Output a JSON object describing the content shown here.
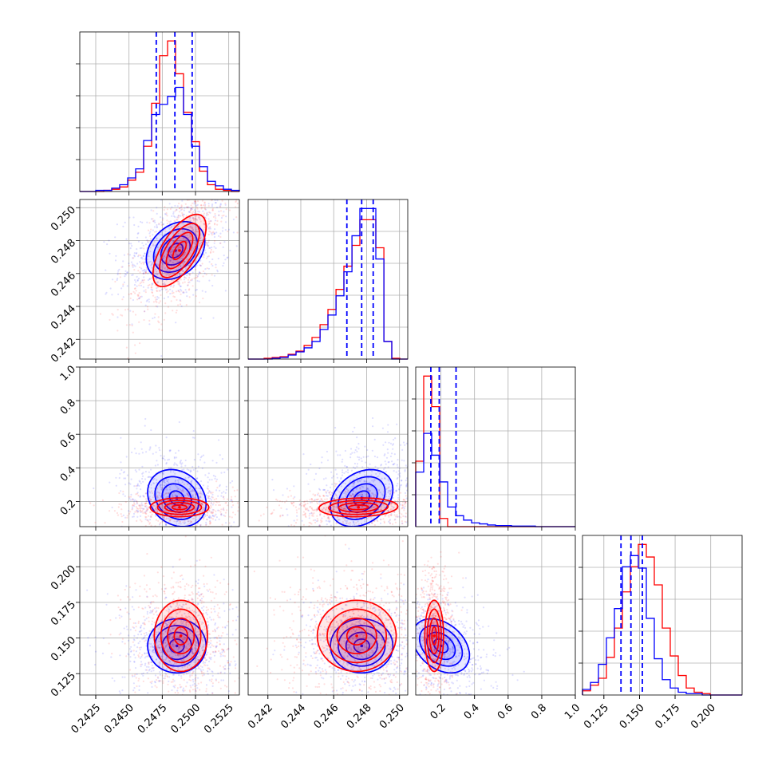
{
  "chart_data": {
    "type": "corner",
    "dimensions": [
      {
        "name": "",
        "range": [
          0.2413,
          0.2533
        ],
        "ticks": [
          "0.2425",
          "0.2450",
          "0.2475",
          "0.2500",
          "0.2525"
        ],
        "tick_values": [
          0.2425,
          0.245,
          0.2475,
          0.25,
          0.2525
        ]
      },
      {
        "name": "",
        "range": [
          0.2408,
          0.2505
        ],
        "ticks": [
          "0.242",
          "0.244",
          "0.246",
          "0.248",
          "0.250"
        ],
        "tick_values": [
          0.242,
          0.244,
          0.246,
          0.248,
          0.25
        ]
      },
      {
        "name": "",
        "range": [
          0.05,
          1.0
        ],
        "ticks": [
          "0.2",
          "0.4",
          "0.6",
          "0.8",
          "1.0"
        ],
        "tick_values": [
          0.2,
          0.4,
          0.6,
          0.8,
          1.0
        ]
      },
      {
        "name": "",
        "range": [
          0.11,
          0.222
        ],
        "ticks": [
          "0.125",
          "0.150",
          "0.175",
          "0.200"
        ],
        "tick_values": [
          0.125,
          0.15,
          0.175,
          0.2
        ]
      }
    ],
    "series": [
      {
        "name": "",
        "color": "#0000ff"
      },
      {
        "name": "",
        "color": "#ff0000"
      }
    ],
    "quantile_lines_color": "#0000ff",
    "quantiles": [
      [
        0.24705,
        0.24845,
        0.24975
      ],
      [
        0.2468,
        0.2477,
        0.2484
      ],
      [
        0.14,
        0.19,
        0.29
      ],
      [
        0.137,
        0.144,
        0.152
      ]
    ],
    "histograms": [
      {
        "bins": [
          0.2413,
          0.2419,
          0.2425,
          0.2431,
          0.2437,
          0.2443,
          0.2449,
          0.2455,
          0.2461,
          0.2467,
          0.2473,
          0.2479,
          0.2485,
          0.2491,
          0.2497,
          0.2503,
          0.2509,
          0.2515,
          0.2521,
          0.2527,
          0.2533
        ],
        "blue": [
          0,
          0,
          1,
          1,
          3,
          6,
          12,
          20,
          45,
          68,
          77,
          84,
          92,
          68,
          40,
          22,
          9,
          5,
          2,
          1
        ],
        "red": [
          0,
          0,
          0,
          1,
          2,
          4,
          10,
          17,
          40,
          78,
          120,
          133,
          104,
          70,
          44,
          18,
          6,
          2,
          1,
          0
        ]
      },
      {
        "bins": [
          0.2408,
          0.24129,
          0.24177,
          0.24226,
          0.24274,
          0.24323,
          0.24371,
          0.2442,
          0.24468,
          0.24517,
          0.24565,
          0.24614,
          0.24662,
          0.24711,
          0.24759,
          0.24808,
          0.24856,
          0.24905,
          0.24953,
          0.25002,
          0.2505
        ],
        "blue": [
          0,
          0,
          0,
          1,
          2,
          5,
          9,
          14,
          22,
          37,
          55,
          79,
          109,
          154,
          188,
          188,
          125,
          22,
          0,
          0
        ],
        "red": [
          0,
          0,
          1,
          2,
          3,
          6,
          10,
          17,
          27,
          43,
          62,
          87,
          116,
          142,
          174,
          174,
          139,
          22,
          1,
          0
        ]
      },
      {
        "bins": [
          0.05,
          0.0975,
          0.145,
          0.1925,
          0.24,
          0.2875,
          0.335,
          0.3825,
          0.43,
          0.4775,
          0.525,
          0.5725,
          0.62,
          0.6675,
          0.715,
          0.7625,
          0.81,
          0.8575,
          0.905,
          0.9525,
          1.0
        ],
        "blue": [
          100,
          171,
          131,
          82,
          36,
          20,
          12,
          7,
          5,
          3,
          2,
          2,
          1,
          1,
          1,
          0,
          0,
          0,
          0,
          0
        ],
        "red": [
          120,
          276,
          220,
          15,
          0,
          0,
          0,
          0,
          0,
          0,
          0,
          0,
          0,
          0,
          0,
          0,
          0,
          0,
          0,
          0
        ]
      },
      {
        "bins": [
          0.11,
          0.1156,
          0.1212,
          0.1268,
          0.1324,
          0.138,
          0.1436,
          0.1492,
          0.1548,
          0.1604,
          0.166,
          0.1716,
          0.1772,
          0.1828,
          0.1884,
          0.194,
          0.1996,
          0.2052,
          0.2108,
          0.2164,
          0.222
        ],
        "blue": [
          4,
          9,
          22,
          41,
          62,
          92,
          100,
          91,
          55,
          26,
          11,
          5,
          2,
          1,
          1,
          0,
          0,
          0,
          0,
          0
        ],
        "red": [
          3,
          7,
          12,
          27,
          48,
          74,
          92,
          108,
          99,
          79,
          48,
          28,
          14,
          5,
          2,
          1,
          0,
          0,
          0,
          0
        ]
      }
    ],
    "pairs": [
      {
        "row": 1,
        "col": 0,
        "blue": {
          "mx": 0.2485,
          "my": 0.2474,
          "sx": 0.0011,
          "sy": 0.00088,
          "rho": 0.3,
          "npts": 700
        },
        "red": {
          "mx": 0.2488,
          "my": 0.2474,
          "sx": 0.001,
          "sy": 0.0011,
          "rho": 0.65,
          "npts": 700
        }
      },
      {
        "row": 2,
        "col": 0,
        "blue": {
          "mx": 0.2486,
          "my": 0.22,
          "sx": 0.0011,
          "sy": 0.085,
          "rho": -0.2,
          "npts": 700
        },
        "red": {
          "mx": 0.2488,
          "my": 0.165,
          "sx": 0.0011,
          "sy": 0.028,
          "rho": 0.0,
          "npts": 700
        }
      },
      {
        "row": 2,
        "col": 1,
        "blue": {
          "mx": 0.2477,
          "my": 0.22,
          "sx": 0.00095,
          "sy": 0.085,
          "rho": 0.3,
          "npts": 700
        },
        "red": {
          "mx": 0.2475,
          "my": 0.165,
          "sx": 0.0012,
          "sy": 0.028,
          "rho": 0.1,
          "npts": 700
        }
      },
      {
        "row": 3,
        "col": 0,
        "blue": {
          "mx": 0.2486,
          "my": 0.1445,
          "sx": 0.0011,
          "sy": 0.0095,
          "rho": 0.0,
          "npts": 700
        },
        "red": {
          "mx": 0.2489,
          "my": 0.1515,
          "sx": 0.001,
          "sy": 0.0125,
          "rho": 0.0,
          "npts": 700
        }
      },
      {
        "row": 3,
        "col": 1,
        "blue": {
          "mx": 0.2477,
          "my": 0.1445,
          "sx": 0.00095,
          "sy": 0.0095,
          "rho": 0.0,
          "npts": 700
        },
        "red": {
          "mx": 0.2474,
          "my": 0.1515,
          "sx": 0.0012,
          "sy": 0.0125,
          "rho": 0.0,
          "npts": 700
        }
      },
      {
        "row": 3,
        "col": 2,
        "blue": {
          "mx": 0.2,
          "my": 0.1445,
          "sx": 0.085,
          "sy": 0.0095,
          "rho": -0.35,
          "npts": 700
        },
        "red": {
          "mx": 0.16,
          "my": 0.1515,
          "sx": 0.028,
          "sy": 0.0125,
          "rho": 0.0,
          "npts": 700
        }
      }
    ],
    "contour_levels_sigma": [
      0.5,
      1.0,
      1.5,
      2.0
    ]
  }
}
